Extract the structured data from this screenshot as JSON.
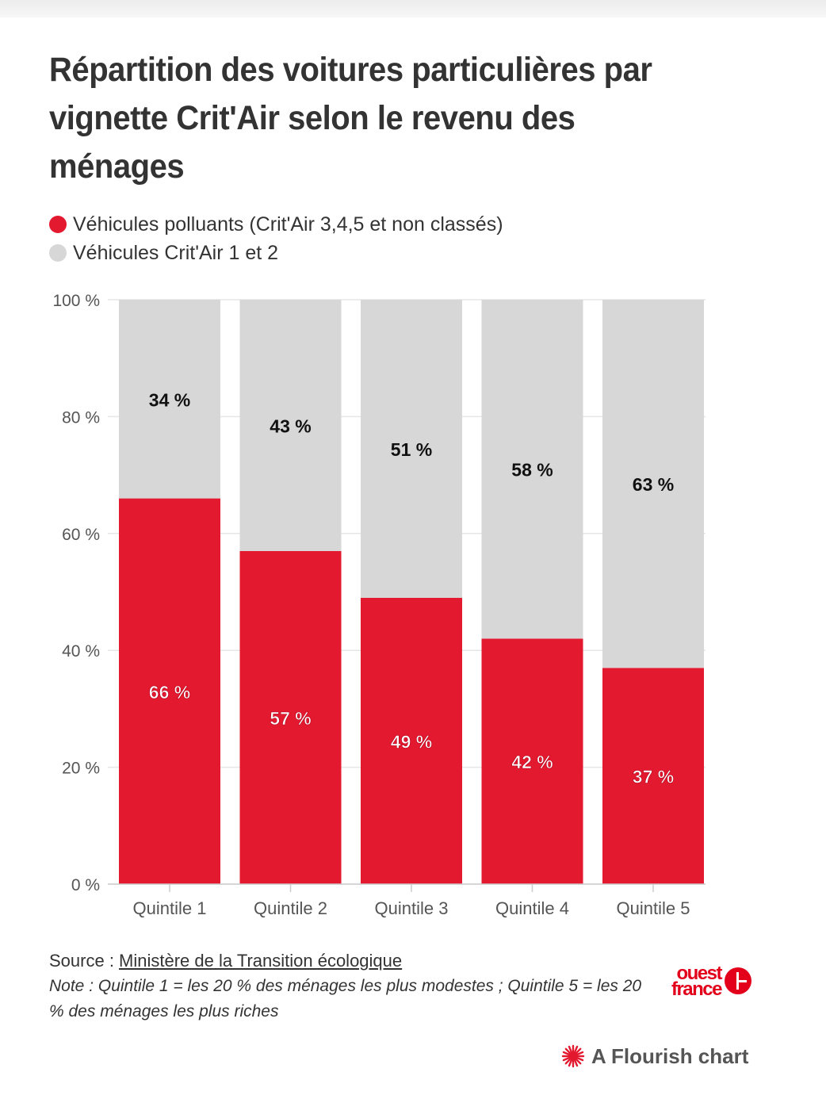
{
  "title": "Répartition des voitures particulières par vignette Crit'Air selon le revenu des ménages",
  "legend": [
    {
      "label": "Véhicules polluants (Crit'Air 3,4,5 et non classés)",
      "color": "#e3192f"
    },
    {
      "label": "Véhicules Crit'Air 1 et 2",
      "color": "#d7d7d7"
    }
  ],
  "chart_data": {
    "type": "bar",
    "stacked": true,
    "categories": [
      "Quintile 1",
      "Quintile 2",
      "Quintile 3",
      "Quintile 4",
      "Quintile 5"
    ],
    "series": [
      {
        "name": "Véhicules polluants (Crit'Air 3,4,5 et non classés)",
        "values": [
          66,
          57,
          49,
          42,
          37
        ],
        "labels": [
          "66 %",
          "57 %",
          "49 %",
          "42 %",
          "37 %"
        ],
        "color": "#e3192f",
        "label_color": "#ffffff"
      },
      {
        "name": "Véhicules Crit'Air 1 et 2",
        "values": [
          34,
          43,
          51,
          58,
          63
        ],
        "labels": [
          "34 %",
          "43 %",
          "51 %",
          "58 %",
          "63 %"
        ],
        "color": "#d7d7d7",
        "label_color": "#111111"
      }
    ],
    "y_ticks": [
      0,
      20,
      40,
      60,
      80,
      100
    ],
    "y_tick_labels": [
      "0 %",
      "20 %",
      "40 %",
      "60 %",
      "80 %",
      "100 %"
    ],
    "ylim": [
      0,
      100
    ],
    "grid": true,
    "legend_position": "top-left"
  },
  "footer": {
    "source_prefix": "Source : ",
    "source_link": "Ministère de la Transition écologique",
    "note": "Note : Quintile 1 = les 20 % des ménages les plus modestes ; Quintile 5 = les 20 % des ménages les plus riches"
  },
  "brand": {
    "line1": "ouest",
    "line2": "france"
  },
  "credit": "A Flourish chart"
}
